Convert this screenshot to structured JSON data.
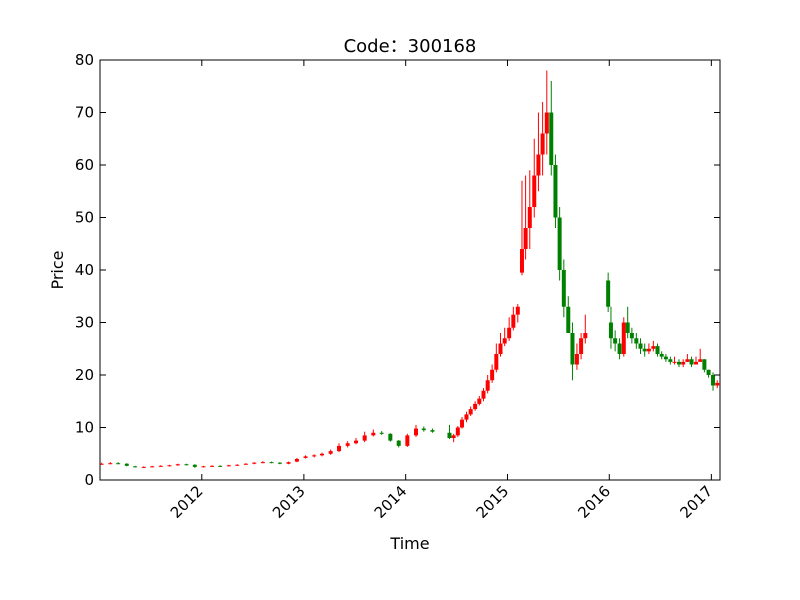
{
  "chart_data": {
    "type": "candlestick",
    "title": "Code：300168",
    "xlabel": "Time",
    "ylabel": "Price",
    "xlim": [
      "2011-01-01",
      "2017-02-01"
    ],
    "ylim": [
      0,
      80
    ],
    "yticks": [
      0,
      10,
      20,
      30,
      40,
      50,
      60,
      70,
      80
    ],
    "xticks": [
      {
        "label": "2012",
        "date": "2012-01-01"
      },
      {
        "label": "2013",
        "date": "2013-01-01"
      },
      {
        "label": "2014",
        "date": "2014-01-01"
      },
      {
        "label": "2015",
        "date": "2015-01-01"
      },
      {
        "label": "2016",
        "date": "2016-01-01"
      },
      {
        "label": "2017",
        "date": "2017-01-01"
      }
    ],
    "xtick_rotation": 45,
    "colors": {
      "up": "#ff0000",
      "down": "#008000"
    },
    "grid": false,
    "legend": "none",
    "series": [
      {
        "dates": [
          "2011-01-07",
          "2011-02-07",
          "2011-03-07",
          "2011-04-07",
          "2011-05-07",
          "2011-06-07",
          "2011-07-07",
          "2011-08-07",
          "2011-09-07",
          "2011-10-07",
          "2011-11-07",
          "2011-12-07",
          "2012-01-07",
          "2012-02-07",
          "2012-03-07",
          "2012-04-07",
          "2012-05-07",
          "2012-06-07",
          "2012-07-07",
          "2012-08-07",
          "2012-09-07",
          "2012-10-07",
          "2012-11-07",
          "2012-12-07",
          "2013-01-07",
          "2013-02-07",
          "2013-03-07",
          "2013-04-07",
          "2013-05-07",
          "2013-06-07",
          "2013-07-07",
          "2013-08-07",
          "2013-09-07",
          "2013-10-07",
          "2013-11-07",
          "2013-12-07",
          "2014-01-07",
          "2014-02-07",
          "2014-03-07",
          "2014-04-07",
          "2014-06-07",
          "2014-06-22",
          "2014-07-07",
          "2014-07-22",
          "2014-08-07",
          "2014-08-22",
          "2014-09-07",
          "2014-09-22",
          "2014-10-07",
          "2014-10-22",
          "2014-11-07",
          "2014-11-22",
          "2014-12-07",
          "2014-12-22",
          "2015-01-07",
          "2015-01-22",
          "2015-02-07",
          "2015-02-22",
          "2015-03-07",
          "2015-03-22",
          "2015-04-07",
          "2015-04-22",
          "2015-05-07",
          "2015-05-22",
          "2015-06-07",
          "2015-06-22",
          "2015-07-07",
          "2015-07-22",
          "2015-08-07",
          "2015-08-22",
          "2015-09-07",
          "2015-09-22",
          "2015-10-07",
          "2015-12-28",
          "2016-01-07",
          "2016-01-22",
          "2016-02-07",
          "2016-02-22",
          "2016-03-07",
          "2016-03-22",
          "2016-04-07",
          "2016-04-22",
          "2016-05-07",
          "2016-05-22",
          "2016-06-07",
          "2016-06-22",
          "2016-07-07",
          "2016-07-22",
          "2016-08-07",
          "2016-08-22",
          "2016-09-07",
          "2016-09-22",
          "2016-10-07",
          "2016-10-22",
          "2016-11-07",
          "2016-11-22",
          "2016-12-07",
          "2016-12-22",
          "2017-01-07",
          "2017-01-22"
        ],
        "open": [
          3.0,
          3.1,
          3.2,
          3.1,
          2.6,
          2.4,
          2.5,
          2.6,
          2.7,
          2.8,
          3.0,
          2.9,
          2.5,
          2.6,
          2.7,
          2.6,
          2.8,
          2.9,
          3.1,
          3.3,
          3.4,
          3.3,
          3.1,
          3.5,
          4.2,
          4.5,
          4.7,
          5.0,
          5.5,
          6.5,
          7.0,
          7.5,
          8.5,
          9.0,
          8.8,
          7.5,
          6.5,
          8.5,
          9.8,
          9.5,
          9.0,
          8.0,
          8.5,
          10.0,
          11.5,
          12.5,
          13.5,
          14.5,
          15.5,
          17.0,
          19.0,
          21.0,
          24.0,
          26.0,
          27.0,
          29.0,
          31.5,
          39.5,
          44.0,
          48.0,
          52.0,
          58.0,
          62.0,
          66.0,
          70.0,
          60.0,
          50.0,
          40.0,
          33.0,
          28.0,
          22.0,
          24.0,
          27.0,
          38.0,
          30.0,
          27.0,
          26.0,
          24.0,
          30.0,
          28.0,
          27.0,
          26.0,
          25.0,
          24.5,
          25.0,
          25.5,
          24.0,
          23.5,
          23.0,
          22.5,
          22.5,
          22.0,
          22.5,
          23.0,
          22.0,
          22.5,
          23.0,
          21.0,
          20.0,
          18.0
        ],
        "close": [
          3.1,
          3.2,
          3.1,
          2.7,
          2.5,
          2.5,
          2.6,
          2.7,
          2.8,
          3.0,
          2.9,
          2.5,
          2.6,
          2.7,
          2.6,
          2.8,
          2.9,
          3.1,
          3.3,
          3.4,
          3.3,
          3.1,
          3.4,
          4.0,
          4.5,
          4.7,
          5.0,
          5.5,
          6.5,
          7.0,
          7.5,
          8.5,
          9.0,
          8.8,
          7.5,
          6.5,
          8.5,
          9.8,
          9.5,
          9.2,
          8.0,
          8.5,
          10.0,
          11.5,
          12.5,
          13.5,
          14.5,
          15.5,
          17.0,
          19.0,
          21.0,
          24.0,
          26.0,
          27.0,
          29.0,
          31.5,
          33.0,
          44.0,
          48.0,
          52.0,
          58.0,
          62.0,
          66.0,
          70.0,
          60.0,
          50.0,
          40.0,
          33.0,
          28.0,
          22.0,
          24.0,
          27.0,
          28.0,
          33.0,
          27.0,
          26.0,
          24.0,
          30.0,
          28.0,
          27.0,
          26.0,
          25.0,
          24.5,
          25.0,
          25.5,
          24.0,
          23.5,
          23.0,
          22.5,
          22.5,
          22.0,
          22.5,
          23.0,
          22.0,
          22.5,
          23.0,
          21.0,
          20.0,
          18.0,
          18.5
        ],
        "high": [
          3.3,
          3.4,
          3.4,
          3.2,
          2.7,
          2.6,
          2.7,
          2.8,
          2.9,
          3.1,
          3.1,
          3.0,
          2.7,
          2.8,
          2.8,
          2.9,
          3.0,
          3.2,
          3.4,
          3.6,
          3.5,
          3.4,
          3.5,
          4.2,
          4.7,
          4.9,
          5.2,
          5.8,
          7.0,
          7.4,
          8.0,
          9.2,
          9.6,
          9.3,
          8.9,
          7.6,
          8.8,
          10.5,
          10.2,
          9.8,
          10.5,
          8.8,
          10.3,
          12.0,
          13.0,
          14.0,
          15.0,
          16.0,
          17.5,
          20.0,
          22.0,
          26.0,
          28.0,
          29.0,
          31.0,
          33.0,
          33.5,
          57.0,
          58.0,
          59.0,
          65.0,
          70.0,
          72.0,
          78.0,
          76.0,
          62.0,
          52.0,
          42.0,
          35.0,
          30.0,
          26.0,
          28.0,
          31.5,
          39.5,
          33.0,
          28.5,
          27.0,
          31.0,
          33.0,
          29.0,
          28.0,
          27.0,
          26.0,
          26.0,
          26.5,
          26.0,
          24.5,
          24.0,
          23.5,
          23.5,
          23.0,
          23.0,
          24.0,
          23.5,
          23.5,
          25.0,
          23.0,
          21.0,
          20.5,
          19.0
        ],
        "low": [
          2.9,
          3.0,
          3.0,
          2.6,
          2.4,
          2.3,
          2.4,
          2.5,
          2.6,
          2.7,
          2.8,
          2.3,
          2.4,
          2.5,
          2.5,
          2.6,
          2.7,
          2.9,
          3.0,
          3.2,
          3.2,
          3.0,
          3.0,
          3.4,
          4.1,
          4.3,
          4.5,
          4.8,
          5.3,
          6.2,
          6.8,
          7.2,
          8.3,
          8.6,
          7.3,
          6.2,
          6.3,
          8.2,
          9.2,
          9.0,
          7.8,
          7.2,
          8.2,
          9.8,
          11.0,
          12.2,
          13.2,
          14.2,
          15.0,
          16.5,
          18.5,
          20.5,
          23.5,
          25.5,
          26.5,
          28.5,
          30.0,
          39.0,
          42.0,
          44.0,
          50.0,
          55.0,
          58.0,
          62.0,
          58.0,
          48.0,
          38.0,
          31.0,
          28.0,
          19.0,
          21.0,
          23.0,
          26.0,
          32.0,
          25.0,
          24.5,
          23.0,
          23.5,
          27.0,
          26.0,
          25.0,
          24.0,
          23.5,
          24.0,
          24.5,
          23.5,
          23.0,
          22.5,
          22.0,
          22.0,
          21.5,
          21.5,
          22.5,
          21.5,
          22.0,
          22.5,
          20.5,
          19.5,
          17.0,
          17.5
        ]
      }
    ]
  }
}
